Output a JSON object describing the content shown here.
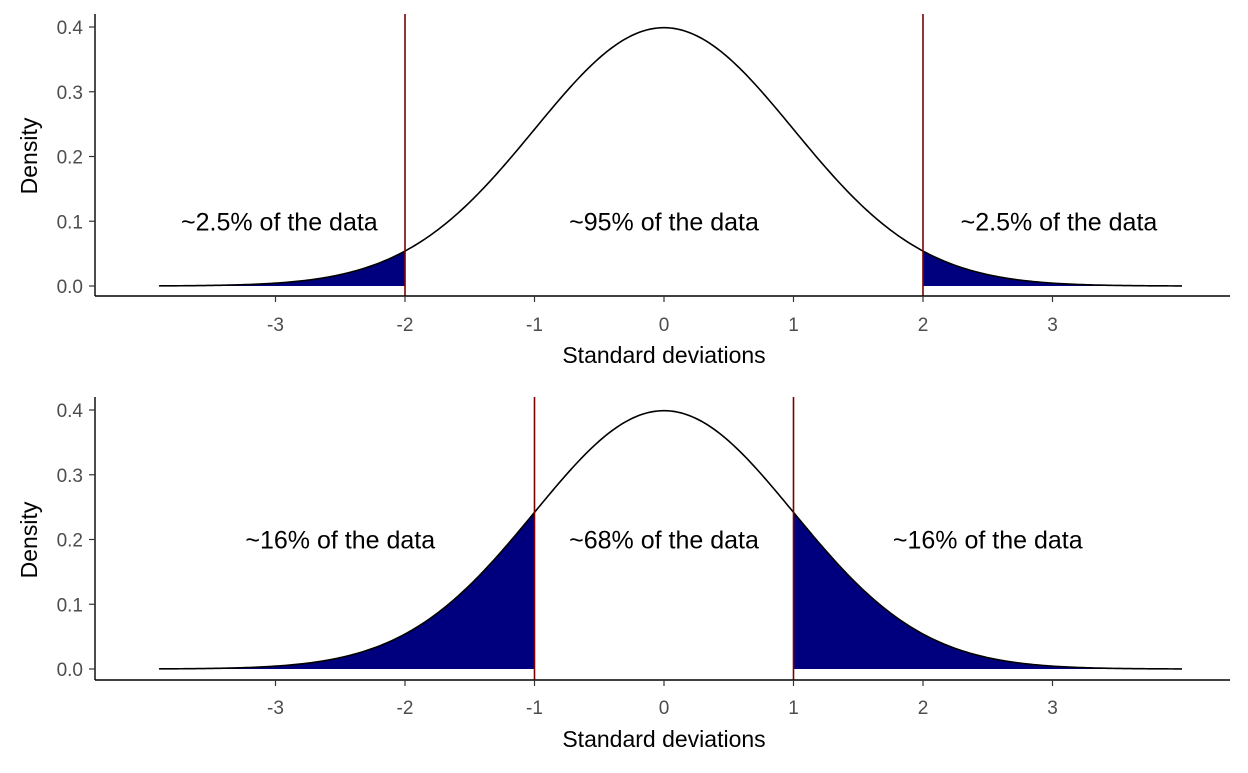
{
  "chart_data": [
    {
      "type": "area",
      "xlabel": "Standard deviations",
      "ylabel": "Density",
      "xlim": [
        -3.9,
        4.0
      ],
      "ylim": [
        0,
        0.4
      ],
      "xticks": [
        "-3",
        "-2",
        "-1",
        "0",
        "1",
        "2",
        "3"
      ],
      "yticks": [
        "0.0",
        "0.1",
        "0.2",
        "0.3",
        "0.4"
      ],
      "grid": false,
      "legend": "none",
      "curve": "normal density, mean 0, sd 1",
      "curve_color": "#000000",
      "fill_color": "#00007f",
      "cutoff_color": "#7f0000",
      "cutoffs": [
        -2,
        2
      ],
      "shaded_regions": [
        [
          -3.9,
          -2
        ],
        [
          2,
          4.0
        ]
      ],
      "annotations": [
        {
          "text": "~2.5% of the data",
          "x": -2.97,
          "y": 0.1
        },
        {
          "text": "~95% of the data",
          "x": 0.0,
          "y": 0.1
        },
        {
          "text": "~2.5% of the data",
          "x": 3.05,
          "y": 0.1
        }
      ]
    },
    {
      "type": "area",
      "xlabel": "Standard deviations",
      "ylabel": "Density",
      "xlim": [
        -3.9,
        4.0
      ],
      "ylim": [
        0,
        0.4
      ],
      "xticks": [
        "-3",
        "-2",
        "-1",
        "0",
        "1",
        "2",
        "3"
      ],
      "yticks": [
        "0.0",
        "0.1",
        "0.2",
        "0.3",
        "0.4"
      ],
      "grid": false,
      "legend": "none",
      "curve": "normal density, mean 0, sd 1",
      "curve_color": "#000000",
      "fill_color": "#00007f",
      "cutoff_color": "#7f0000",
      "cutoffs": [
        -1,
        1
      ],
      "shaded_regions": [
        [
          -3.9,
          -1
        ],
        [
          1,
          4.0
        ]
      ],
      "annotations": [
        {
          "text": "~16% of the data",
          "x": -2.5,
          "y": 0.2
        },
        {
          "text": "~68% of the data",
          "x": 0.0,
          "y": 0.2
        },
        {
          "text": "~16% of the data",
          "x": 2.5,
          "y": 0.2
        }
      ]
    }
  ]
}
